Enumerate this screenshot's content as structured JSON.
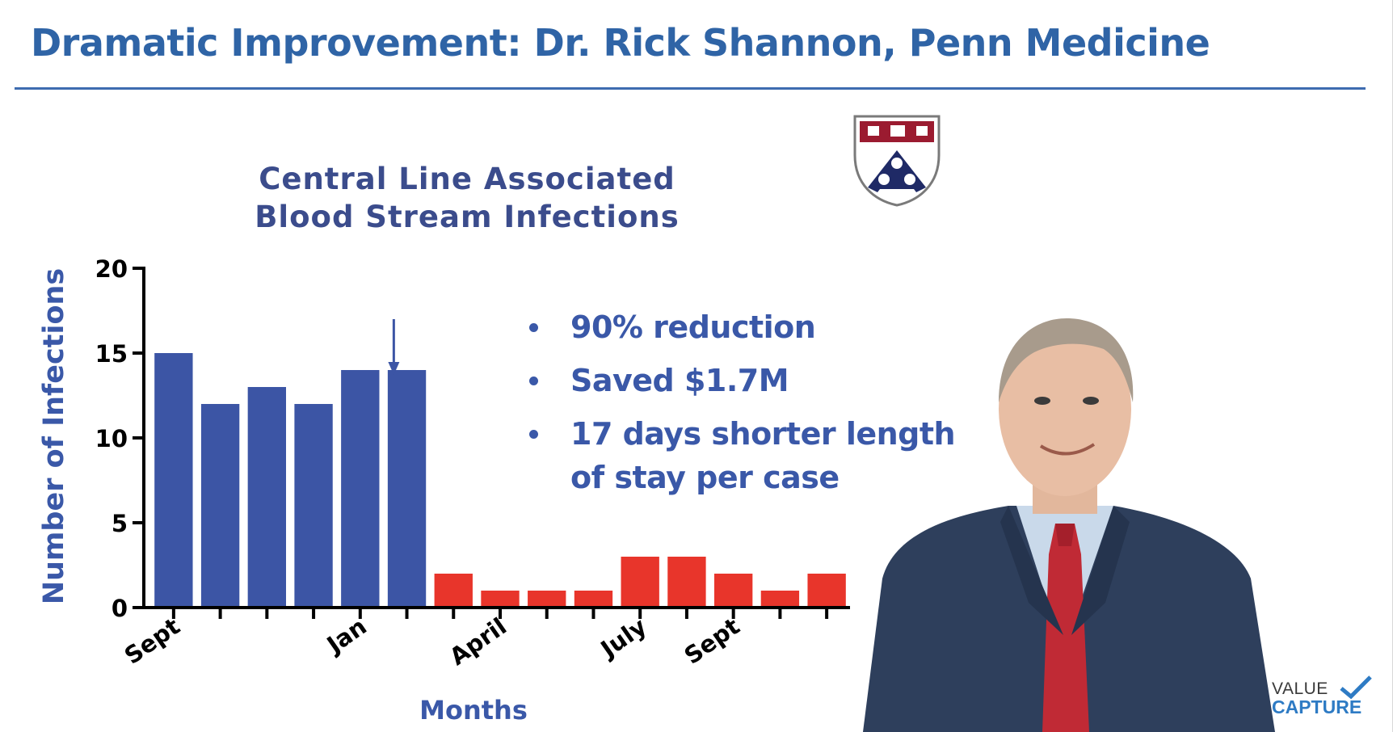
{
  "slide": {
    "title": "Dramatic Improvement: Dr. Rick Shannon, Penn Medicine",
    "bullets": [
      "90% reduction",
      "Saved $1.7M",
      "17 days shorter length of stay per case"
    ],
    "brand": {
      "line1": "VALUE",
      "line2": "CAPTURE"
    }
  },
  "colors": {
    "title": "#2f64a6",
    "chart_title": "#3b4c8c",
    "before_bar": "#3c55a5",
    "after_bar": "#e8352b",
    "axis_label": "#3a58a8",
    "bullet_text": "#3a58a8"
  },
  "icons": {
    "crest": "university-shield-icon",
    "photo": "person-photo",
    "intervention_marker": "down-arrow-icon",
    "brand_mark": "checkmark-icon"
  },
  "chart_data": {
    "type": "bar",
    "title": "Central Line Associated Blood Stream Infections",
    "xlabel": "Months",
    "ylabel": "Number of Infections",
    "ylim": [
      0,
      20
    ],
    "yticks": [
      0,
      5,
      10,
      15,
      20
    ],
    "x_tick_labels": [
      {
        "index": 0,
        "label": "Sept"
      },
      {
        "index": 4,
        "label": "Jan"
      },
      {
        "index": 7,
        "label": "April"
      },
      {
        "index": 10,
        "label": "July"
      },
      {
        "index": 12,
        "label": "Sept"
      }
    ],
    "intervention_index": 6,
    "values": [
      15,
      12,
      13,
      12,
      14,
      14,
      2,
      1,
      1,
      1,
      3,
      3,
      2,
      1,
      2
    ],
    "series": [
      {
        "values": [
          15,
          12,
          13,
          12,
          14,
          14
        ],
        "color": "#3c55a5"
      },
      {
        "values": [
          2,
          1,
          1,
          1,
          3,
          3,
          2,
          1,
          2
        ],
        "color": "#e8352b"
      }
    ],
    "grid": false,
    "legend": "none"
  }
}
